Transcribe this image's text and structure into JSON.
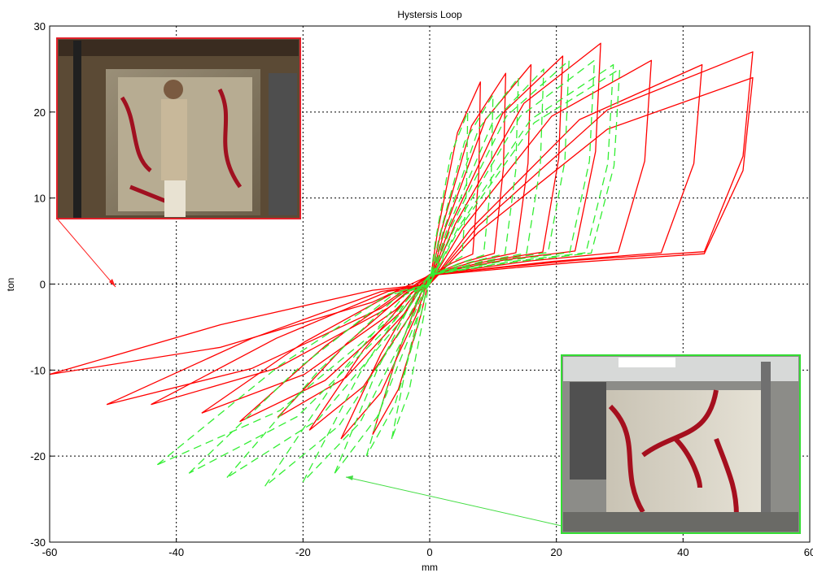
{
  "chart_data": {
    "type": "line",
    "title": "Hystersis Loop",
    "xlabel": "mm",
    "ylabel": "ton",
    "xlim": [
      -60,
      60
    ],
    "ylim": [
      -30,
      30
    ],
    "x_ticks": [
      -60,
      -40,
      -20,
      0,
      20,
      40,
      60
    ],
    "y_ticks": [
      -30,
      -20,
      -10,
      0,
      10,
      20,
      30
    ],
    "x_tick_labels": [
      "-60",
      "-40",
      "-20",
      "0",
      "20",
      "40",
      "60"
    ],
    "y_tick_labels": [
      "-30",
      "-20",
      "-10",
      "0",
      "10",
      "20",
      "30"
    ],
    "grid": true,
    "legend": "none",
    "series": [
      {
        "color": "#ff0000",
        "line_style": "solid",
        "loops": [
          {
            "peak_x": 8,
            "peak_y": 23.5,
            "valley_x": -9,
            "valley_y": -17.5
          },
          {
            "peak_x": 12,
            "peak_y": 24.5,
            "valley_x": -14,
            "valley_y": -18
          },
          {
            "peak_x": 16,
            "peak_y": 25.5,
            "valley_x": -19,
            "valley_y": -17
          },
          {
            "peak_x": 21,
            "peak_y": 26.5,
            "valley_x": -24,
            "valley_y": -15.5
          },
          {
            "peak_x": 27,
            "peak_y": 28,
            "valley_x": -30,
            "valley_y": -16
          },
          {
            "peak_x": 35,
            "peak_y": 26,
            "valley_x": -36,
            "valley_y": -15
          },
          {
            "peak_x": 43,
            "peak_y": 25.5,
            "valley_x": -44,
            "valley_y": -14
          },
          {
            "peak_x": 51,
            "peak_y": 27,
            "valley_x": -51,
            "valley_y": -14
          },
          {
            "peak_x": 51,
            "peak_y": 24,
            "valley_x": -60,
            "valley_y": -10.5
          }
        ]
      },
      {
        "color": "#33ee33",
        "line_style": "dashed",
        "loops": [
          {
            "peak_x": 6,
            "peak_y": 20,
            "valley_x": -6,
            "valley_y": -18
          },
          {
            "peak_x": 10,
            "peak_y": 22,
            "valley_x": -10,
            "valley_y": -20
          },
          {
            "peak_x": 14,
            "peak_y": 24,
            "valley_x": -15,
            "valley_y": -22
          },
          {
            "peak_x": 18,
            "peak_y": 25,
            "valley_x": -20,
            "valley_y": -23
          },
          {
            "peak_x": 22,
            "peak_y": 26,
            "valley_x": -26,
            "valley_y": -23.5
          },
          {
            "peak_x": 26,
            "peak_y": 26,
            "valley_x": -32,
            "valley_y": -22.5
          },
          {
            "peak_x": 29,
            "peak_y": 25.5,
            "valley_x": -38,
            "valley_y": -22
          },
          {
            "peak_x": 30,
            "peak_y": 25,
            "valley_x": -43,
            "valley_y": -21
          }
        ]
      }
    ],
    "annotations": [
      {
        "kind": "photo-inset",
        "frame_color": "#e0202a",
        "arrow_to": [
          -50,
          -0.5
        ]
      },
      {
        "kind": "photo-inset",
        "frame_color": "#33dd33",
        "arrow_to": [
          -14,
          -22.5
        ]
      }
    ]
  }
}
